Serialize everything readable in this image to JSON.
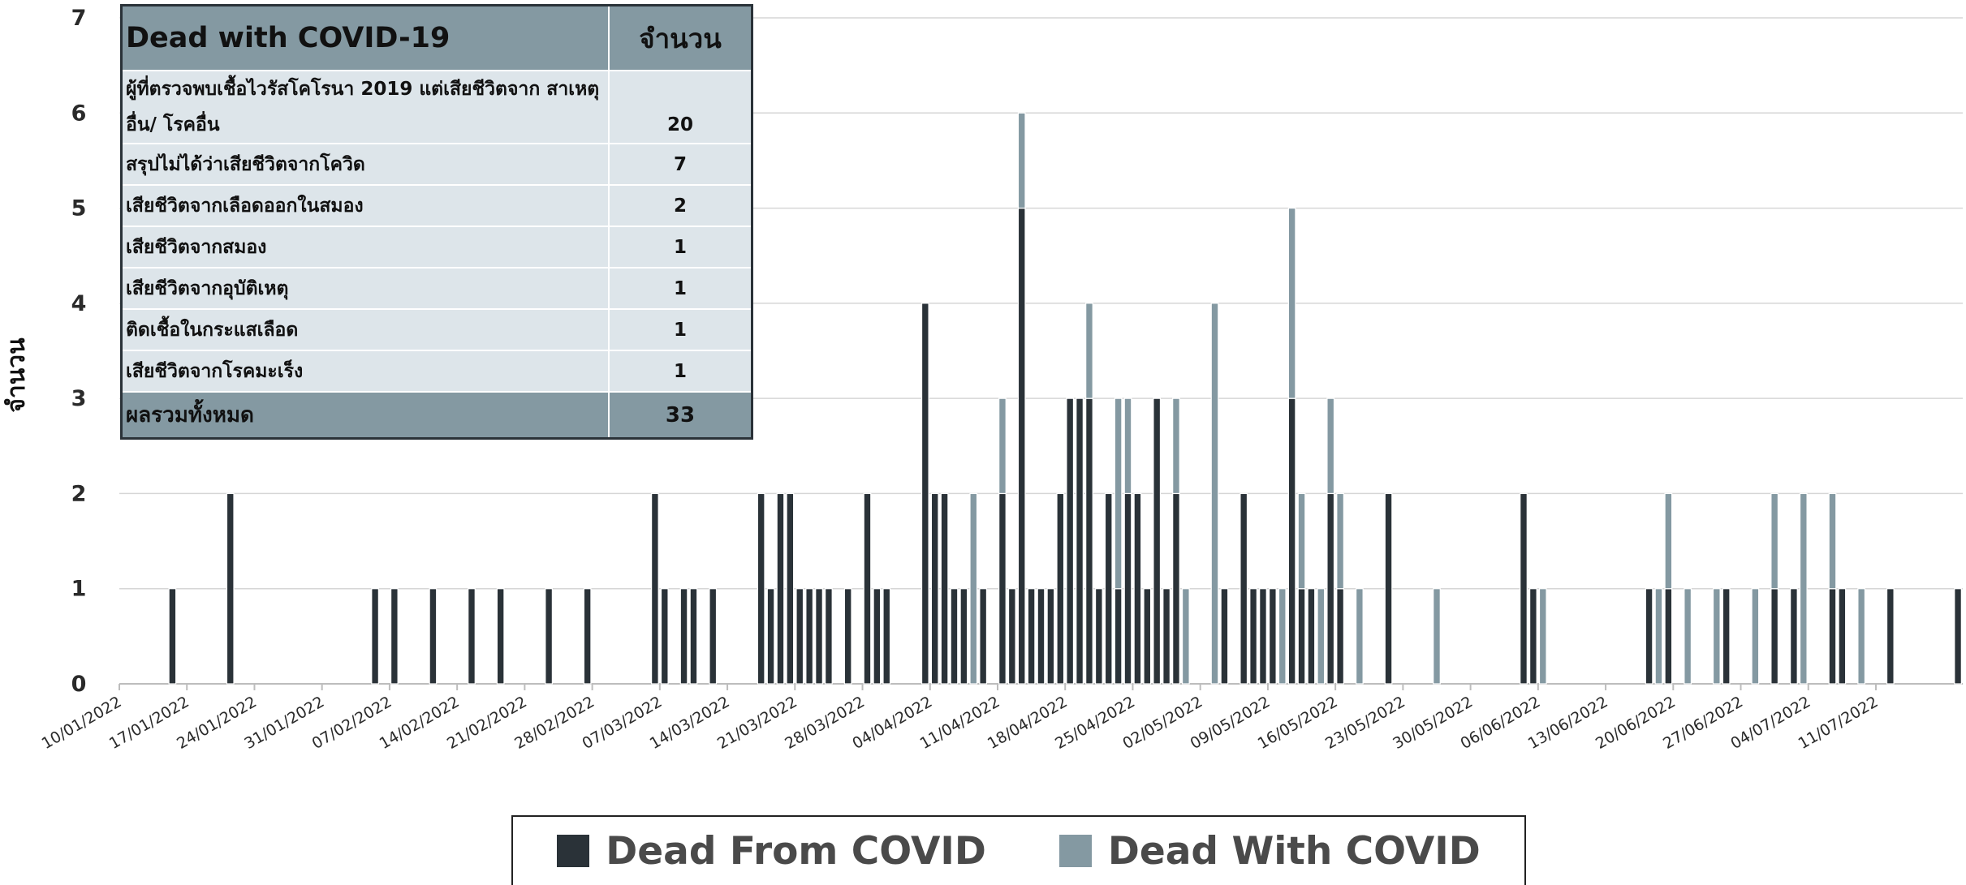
{
  "chart_data": {
    "type": "bar",
    "stacked": true,
    "ylabel": "จำนวน",
    "xlabel": "",
    "ylim": [
      0,
      7
    ],
    "yticks": [
      0,
      1,
      2,
      3,
      4,
      5,
      6,
      7
    ],
    "x_start": "10/01/2022",
    "x_end": "20/07/2022",
    "xtick_labels": [
      "10/01/2022",
      "17/01/2022",
      "24/01/2022",
      "31/01/2022",
      "07/02/2022",
      "14/02/2022",
      "21/02/2022",
      "28/02/2022",
      "07/03/2022",
      "14/03/2022",
      "21/03/2022",
      "28/03/2022",
      "04/04/2022",
      "11/04/2022",
      "18/04/2022",
      "25/04/2022",
      "02/05/2022",
      "09/05/2022",
      "16/05/2022",
      "23/05/2022",
      "30/05/2022",
      "06/06/2022",
      "13/06/2022",
      "20/06/2022",
      "27/06/2022",
      "04/07/2022",
      "11/07/2022"
    ],
    "grid": "horizontal",
    "colors": {
      "from": "#2a3238",
      "with": "#8499a2"
    },
    "series": [
      {
        "name": "Dead From COVID",
        "color": "#2a3238",
        "points": [
          [
            "15/01/2022",
            1
          ],
          [
            "21/01/2022",
            2
          ],
          [
            "05/02/2022",
            1
          ],
          [
            "07/02/2022",
            1
          ],
          [
            "11/02/2022",
            1
          ],
          [
            "15/02/2022",
            1
          ],
          [
            "18/02/2022",
            1
          ],
          [
            "23/02/2022",
            1
          ],
          [
            "27/02/2022",
            1
          ],
          [
            "06/03/2022",
            2
          ],
          [
            "07/03/2022",
            1
          ],
          [
            "09/03/2022",
            1
          ],
          [
            "10/03/2022",
            1
          ],
          [
            "12/03/2022",
            1
          ],
          [
            "17/03/2022",
            2
          ],
          [
            "18/03/2022",
            1
          ],
          [
            "19/03/2022",
            2
          ],
          [
            "20/03/2022",
            2
          ],
          [
            "21/03/2022",
            1
          ],
          [
            "22/03/2022",
            1
          ],
          [
            "23/03/2022",
            1
          ],
          [
            "24/03/2022",
            1
          ],
          [
            "26/03/2022",
            1
          ],
          [
            "28/03/2022",
            2
          ],
          [
            "29/03/2022",
            1
          ],
          [
            "30/03/2022",
            1
          ],
          [
            "03/04/2022",
            4
          ],
          [
            "04/04/2022",
            2
          ],
          [
            "05/04/2022",
            2
          ],
          [
            "06/04/2022",
            1
          ],
          [
            "07/04/2022",
            1
          ],
          [
            "09/04/2022",
            1
          ],
          [
            "11/04/2022",
            2
          ],
          [
            "12/04/2022",
            1
          ],
          [
            "13/04/2022",
            5
          ],
          [
            "14/04/2022",
            1
          ],
          [
            "15/04/2022",
            1
          ],
          [
            "16/04/2022",
            1
          ],
          [
            "17/04/2022",
            2
          ],
          [
            "18/04/2022",
            3
          ],
          [
            "19/04/2022",
            3
          ],
          [
            "20/04/2022",
            3
          ],
          [
            "21/04/2022",
            1
          ],
          [
            "22/04/2022",
            2
          ],
          [
            "23/04/2022",
            1
          ],
          [
            "24/04/2022",
            2
          ],
          [
            "25/04/2022",
            2
          ],
          [
            "26/04/2022",
            1
          ],
          [
            "27/04/2022",
            3
          ],
          [
            "28/04/2022",
            1
          ],
          [
            "29/04/2022",
            2
          ],
          [
            "04/05/2022",
            1
          ],
          [
            "06/05/2022",
            2
          ],
          [
            "07/05/2022",
            1
          ],
          [
            "08/05/2022",
            1
          ],
          [
            "09/05/2022",
            1
          ],
          [
            "11/05/2022",
            3
          ],
          [
            "12/05/2022",
            1
          ],
          [
            "13/05/2022",
            1
          ],
          [
            "15/05/2022",
            2
          ],
          [
            "16/05/2022",
            1
          ],
          [
            "21/05/2022",
            2
          ],
          [
            "04/06/2022",
            2
          ],
          [
            "05/06/2022",
            1
          ],
          [
            "17/06/2022",
            1
          ],
          [
            "19/06/2022",
            1
          ],
          [
            "25/06/2022",
            1
          ],
          [
            "30/06/2022",
            1
          ],
          [
            "02/07/2022",
            1
          ],
          [
            "06/07/2022",
            1
          ],
          [
            "07/07/2022",
            1
          ],
          [
            "12/07/2022",
            1
          ],
          [
            "19/07/2022",
            1
          ]
        ]
      },
      {
        "name": "Dead With COVID",
        "color": "#8499a2",
        "points": [
          [
            "08/04/2022",
            2
          ],
          [
            "11/04/2022",
            1
          ],
          [
            "13/04/2022",
            1
          ],
          [
            "20/04/2022",
            1
          ],
          [
            "23/04/2022",
            2
          ],
          [
            "24/04/2022",
            1
          ],
          [
            "29/04/2022",
            1
          ],
          [
            "30/04/2022",
            1
          ],
          [
            "03/05/2022",
            4
          ],
          [
            "10/05/2022",
            1
          ],
          [
            "11/05/2022",
            2
          ],
          [
            "12/05/2022",
            1
          ],
          [
            "14/05/2022",
            1
          ],
          [
            "15/05/2022",
            1
          ],
          [
            "16/05/2022",
            1
          ],
          [
            "18/05/2022",
            1
          ],
          [
            "26/05/2022",
            1
          ],
          [
            "06/06/2022",
            1
          ],
          [
            "18/06/2022",
            1
          ],
          [
            "19/06/2022",
            1
          ],
          [
            "21/06/2022",
            1
          ],
          [
            "24/06/2022",
            1
          ],
          [
            "28/06/2022",
            1
          ],
          [
            "30/06/2022",
            1
          ],
          [
            "03/07/2022",
            2
          ],
          [
            "06/07/2022",
            1
          ],
          [
            "09/07/2022",
            1
          ]
        ]
      }
    ]
  },
  "table": {
    "title": "Dead with COVID-19",
    "count_header": "จำนวน",
    "rows": [
      {
        "label": "ผู้ที่ตรวจพบเชื้อไวรัสโคโรนา 2019 แต่เสียชีวิตจาก สาเหตุอื่น/ โรคอื่น",
        "value": "20"
      },
      {
        "label": "สรุปไม่ได้ว่าเสียชีวิตจากโควิด",
        "value": "7"
      },
      {
        "label": "เสียชีวิตจากเลือดออกในสมอง",
        "value": "2"
      },
      {
        "label": "เสียชีวิตจากสมอง",
        "value": "1"
      },
      {
        "label": "เสียชีวิตจากอุบัติเหตุ",
        "value": "1"
      },
      {
        "label": "ติดเชื้อในกระแสเลือด",
        "value": "1"
      },
      {
        "label": "เสียชีวิตจากโรคมะเร็ง",
        "value": "1"
      }
    ],
    "total_label": "ผลรวมทั้งหมด",
    "total_value": "33"
  },
  "legend": {
    "items": [
      {
        "label": "Dead From COVID",
        "color": "#2a3238"
      },
      {
        "label": "Dead With COVID",
        "color": "#8499a2"
      }
    ]
  }
}
